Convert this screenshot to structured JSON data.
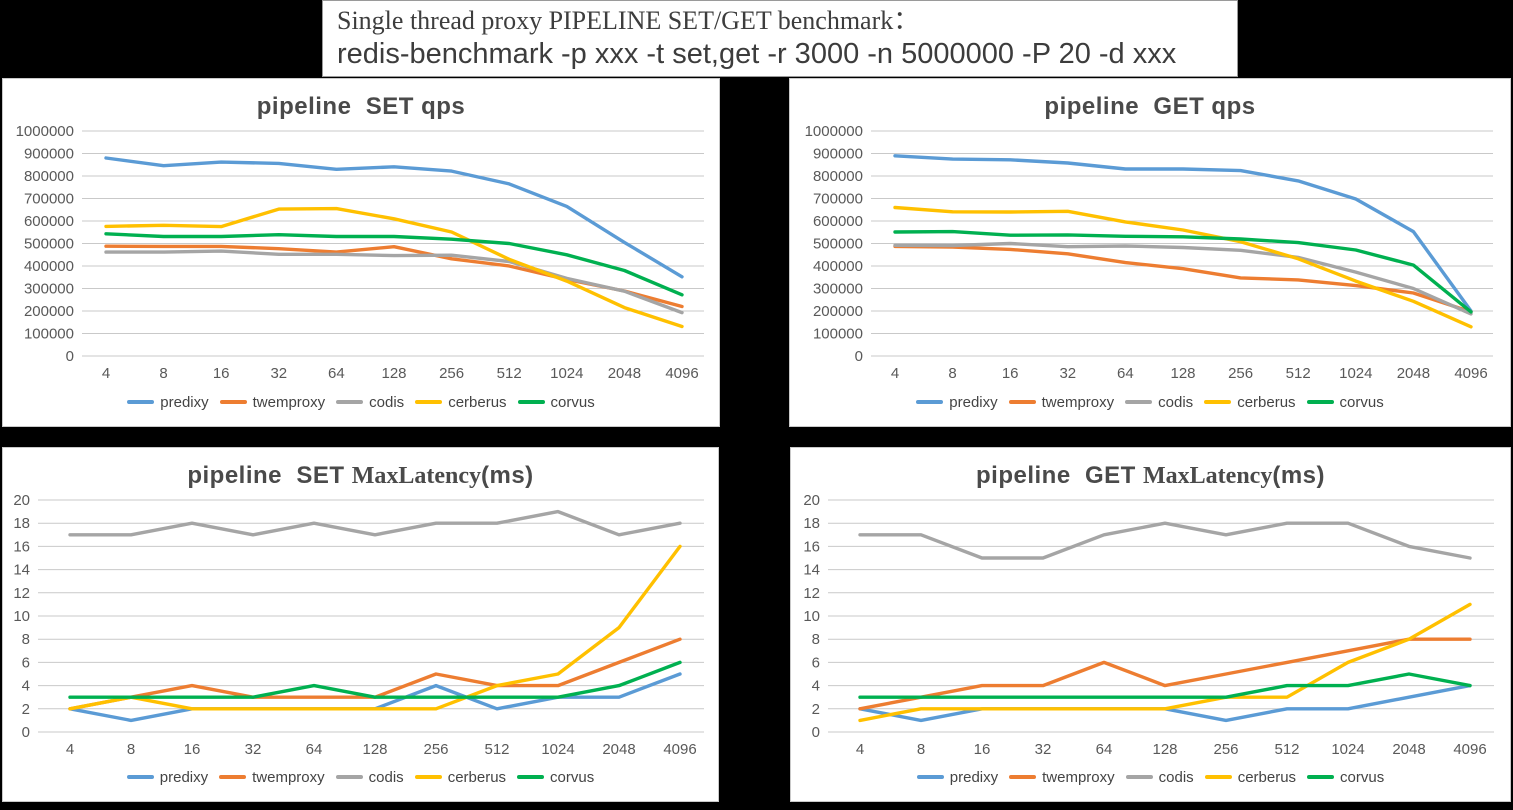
{
  "header": {
    "line1": "Single thread proxy PIPELINE SET/GET benchmark：",
    "line2": "redis-benchmark -p xxx -t set,get -r 3000 -n 5000000 -P 20 -d xxx"
  },
  "colors": {
    "background": "#000000",
    "panel": "#FFFFFF",
    "gridline": "#C9C9C9",
    "axis_text": "#595959",
    "title_text": "#4A4A4A",
    "predixy": "#5B9BD5",
    "twemproxy": "#ED7D31",
    "codis": "#A5A5A5",
    "cerberus": "#FFC000",
    "corvus": "#00B050"
  },
  "chart_data": [
    {
      "id": "pipeline-set-qps",
      "type": "line",
      "title_parts": [
        {
          "text": "pipeline  SET qps",
          "serif": false
        }
      ],
      "legend_position": "bottom",
      "grid": true,
      "y_axis": {
        "min": 0,
        "max": 1000000,
        "step": 100000,
        "tick_labels": [
          "1000000",
          "900000",
          "800000",
          "700000",
          "600000",
          "500000",
          "400000",
          "300000",
          "200000",
          "100000",
          "0"
        ]
      },
      "categories": [
        "4",
        "8",
        "16",
        "32",
        "64",
        "128",
        "256",
        "512",
        "1024",
        "2048",
        "4096"
      ],
      "series": [
        {
          "name": "predixy",
          "color": "#5B9BD5",
          "values": [
            880000,
            846000,
            862000,
            856000,
            830000,
            841000,
            822000,
            765000,
            665000,
            505000,
            352000
          ]
        },
        {
          "name": "twemproxy",
          "color": "#ED7D31",
          "values": [
            488000,
            487000,
            487000,
            477000,
            462000,
            486000,
            432000,
            400000,
            340000,
            289000,
            220000
          ]
        },
        {
          "name": "codis",
          "color": "#A5A5A5",
          "values": [
            462000,
            462000,
            466000,
            452000,
            452000,
            446000,
            448000,
            420000,
            345000,
            288000,
            193000
          ]
        },
        {
          "name": "cerberus",
          "color": "#FFC000",
          "values": [
            576000,
            581000,
            575000,
            653000,
            655000,
            610000,
            551000,
            430000,
            333000,
            215000,
            131000
          ]
        },
        {
          "name": "corvus",
          "color": "#00B050",
          "values": [
            543000,
            531000,
            531000,
            539000,
            531000,
            531000,
            519000,
            500000,
            450000,
            380000,
            272000
          ]
        }
      ]
    },
    {
      "id": "pipeline-get-qps",
      "type": "line",
      "title_parts": [
        {
          "text": "pipeline  GET qps",
          "serif": false
        }
      ],
      "legend_position": "bottom",
      "grid": true,
      "y_axis": {
        "min": 0,
        "max": 1000000,
        "step": 100000,
        "tick_labels": [
          "1000000",
          "900000",
          "800000",
          "700000",
          "600000",
          "500000",
          "400000",
          "300000",
          "200000",
          "100000",
          "0"
        ]
      },
      "categories": [
        "4",
        "8",
        "16",
        "32",
        "64",
        "128",
        "256",
        "512",
        "1024",
        "2048",
        "4096"
      ],
      "series": [
        {
          "name": "predixy",
          "color": "#5B9BD5",
          "values": [
            890000,
            875000,
            872000,
            858000,
            831000,
            831000,
            824000,
            778000,
            698000,
            553000,
            200000
          ]
        },
        {
          "name": "twemproxy",
          "color": "#ED7D31",
          "values": [
            487000,
            484000,
            474000,
            454000,
            415000,
            388000,
            347000,
            338000,
            313000,
            280000,
            196000
          ]
        },
        {
          "name": "codis",
          "color": "#A5A5A5",
          "values": [
            492000,
            491000,
            500000,
            486000,
            489000,
            482000,
            470000,
            438000,
            373000,
            300000,
            187000
          ]
        },
        {
          "name": "cerberus",
          "color": "#FFC000",
          "values": [
            660000,
            641000,
            640000,
            643000,
            596000,
            560000,
            508000,
            432000,
            333000,
            243000,
            130000
          ]
        },
        {
          "name": "corvus",
          "color": "#00B050",
          "values": [
            551000,
            553000,
            537000,
            538000,
            532000,
            530000,
            520000,
            504000,
            471000,
            404000,
            196000
          ]
        }
      ]
    },
    {
      "id": "pipeline-set-maxlatency",
      "type": "line",
      "title_parts": [
        {
          "text": "pipeline  SET ",
          "serif": false
        },
        {
          "text": "MaxLatency",
          "serif": true
        },
        {
          "text": "(ms)",
          "serif": false
        }
      ],
      "legend_position": "bottom",
      "grid": true,
      "y_axis": {
        "min": 0,
        "max": 20,
        "step": 2,
        "tick_labels": [
          "20",
          "18",
          "16",
          "14",
          "12",
          "10",
          "8",
          "6",
          "4",
          "2",
          "0"
        ]
      },
      "categories": [
        "4",
        "8",
        "16",
        "32",
        "64",
        "128",
        "256",
        "512",
        "1024",
        "2048",
        "4096"
      ],
      "series": [
        {
          "name": "predixy",
          "color": "#5B9BD5",
          "values": [
            2,
            1,
            2,
            2,
            2,
            2,
            4,
            2,
            3,
            3,
            5
          ]
        },
        {
          "name": "twemproxy",
          "color": "#ED7D31",
          "values": [
            2,
            3,
            4,
            3,
            3,
            3,
            5,
            4,
            4,
            6,
            8
          ]
        },
        {
          "name": "codis",
          "color": "#A5A5A5",
          "values": [
            17,
            17,
            18,
            17,
            18,
            17,
            18,
            18,
            19,
            17,
            18
          ]
        },
        {
          "name": "cerberus",
          "color": "#FFC000",
          "values": [
            2,
            3,
            2,
            2,
            2,
            2,
            2,
            4,
            5,
            9,
            16
          ]
        },
        {
          "name": "corvus",
          "color": "#00B050",
          "values": [
            3,
            3,
            3,
            3,
            4,
            3,
            3,
            3,
            3,
            4,
            6
          ]
        }
      ]
    },
    {
      "id": "pipeline-get-maxlatency",
      "type": "line",
      "title_parts": [
        {
          "text": "pipeline  GET ",
          "serif": false
        },
        {
          "text": "MaxLatency",
          "serif": true
        },
        {
          "text": "(ms)",
          "serif": false
        }
      ],
      "legend_position": "bottom",
      "grid": true,
      "y_axis": {
        "min": 0,
        "max": 20,
        "step": 2,
        "tick_labels": [
          "20",
          "18",
          "16",
          "14",
          "12",
          "10",
          "8",
          "6",
          "4",
          "2",
          "0"
        ]
      },
      "categories": [
        "4",
        "8",
        "16",
        "32",
        "64",
        "128",
        "256",
        "512",
        "1024",
        "2048",
        "4096"
      ],
      "series": [
        {
          "name": "predixy",
          "color": "#5B9BD5",
          "values": [
            2,
            1,
            2,
            2,
            2,
            2,
            1,
            2,
            2,
            3,
            4
          ]
        },
        {
          "name": "twemproxy",
          "color": "#ED7D31",
          "values": [
            2,
            3,
            4,
            4,
            6,
            4,
            5,
            6,
            7,
            8,
            8
          ]
        },
        {
          "name": "codis",
          "color": "#A5A5A5",
          "values": [
            17,
            17,
            15,
            15,
            17,
            18,
            17,
            18,
            18,
            16,
            15
          ]
        },
        {
          "name": "cerberus",
          "color": "#FFC000",
          "values": [
            1,
            2,
            2,
            2,
            2,
            2,
            3,
            3,
            6,
            8,
            11
          ]
        },
        {
          "name": "corvus",
          "color": "#00B050",
          "values": [
            3,
            3,
            3,
            3,
            3,
            3,
            3,
            4,
            4,
            5,
            4
          ]
        }
      ]
    }
  ]
}
